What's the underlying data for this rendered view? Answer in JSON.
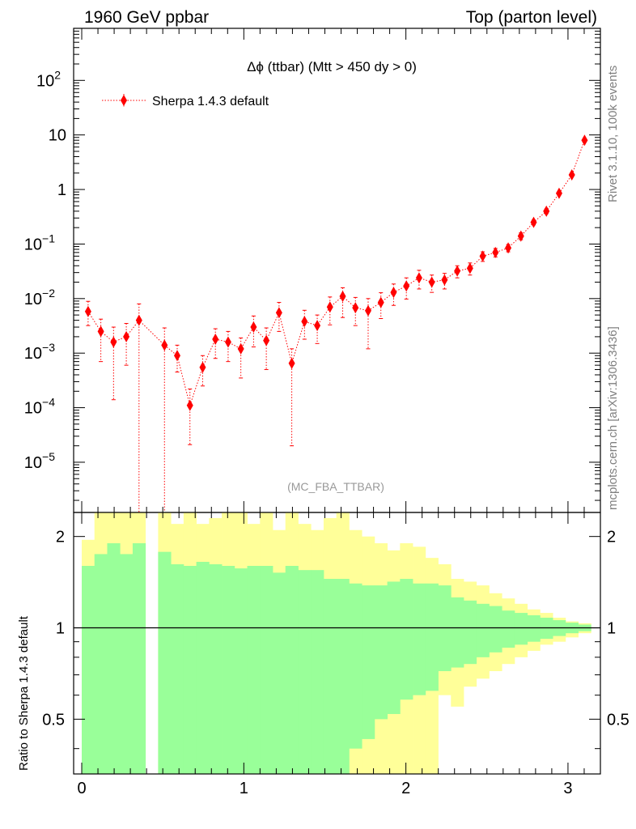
{
  "header": {
    "left": "1960 GeV ppbar",
    "right": "Top (parton level)"
  },
  "side": {
    "rivet": "Rivet 3.1.10,  100k events",
    "mcplots": "mcplots.cern.ch [arXiv:1306.3436]"
  },
  "chart_data": {
    "type": "scatter",
    "title": "Δϕ (ttbar) (Mtt > 450 dy > 0)",
    "analysis_label": "(MC_FBA_TTBAR)",
    "legend": {
      "position": "top-left",
      "entries": [
        "Sherpa 1.4.3 default"
      ]
    },
    "xlim": [
      -0.05,
      3.2
    ],
    "x_ticks": [
      0,
      1,
      2,
      3
    ],
    "x_tick_labels": [
      "0",
      "1",
      "2",
      "3"
    ],
    "main": {
      "y_scale": "log",
      "ylim": [
        1.2e-06,
        900
      ],
      "y_tick_labels": [
        {
          "value": 100,
          "base": "10",
          "exp": "2"
        },
        {
          "value": 10,
          "base": "10",
          "exp": ""
        },
        {
          "value": 1,
          "base": "1",
          "exp": ""
        },
        {
          "value": 0.1,
          "base": "10",
          "exp": "−1"
        },
        {
          "value": 0.01,
          "base": "10",
          "exp": "−2"
        },
        {
          "value": 0.001,
          "base": "10",
          "exp": "−3"
        },
        {
          "value": 0.0001,
          "base": "10",
          "exp": "−4"
        },
        {
          "value": 1e-05,
          "base": "10",
          "exp": "−5"
        }
      ],
      "series": [
        {
          "name": "Sherpa 1.4.3 default",
          "color": "#ff0000",
          "marker": "diamond",
          "line": "dotted",
          "x": [
            0.0393,
            0.1178,
            0.1963,
            0.2749,
            0.3534,
            0.432,
            0.5105,
            0.589,
            0.6676,
            0.7461,
            0.8247,
            0.9032,
            0.9817,
            1.0603,
            1.1388,
            1.2174,
            1.2959,
            1.3744,
            1.453,
            1.5315,
            1.6101,
            1.6886,
            1.7671,
            1.8457,
            1.9242,
            2.0028,
            2.0813,
            2.1598,
            2.2384,
            2.3169,
            2.3955,
            2.474,
            2.5525,
            2.6311,
            2.7096,
            2.7882,
            2.8667,
            2.9452,
            3.0238,
            3.1023
          ],
          "y": [
            0.0058,
            0.0025,
            0.0016,
            0.002,
            0.004,
            0,
            0.0014,
            0.0009,
            0.00011,
            0.00055,
            0.0018,
            0.0016,
            0.0012,
            0.003,
            0.0017,
            0.0055,
            0.00065,
            0.0038,
            0.0032,
            0.007,
            0.011,
            0.0068,
            0.006,
            0.0085,
            0.013,
            0.017,
            0.024,
            0.02,
            0.022,
            0.032,
            0.036,
            0.06,
            0.07,
            0.085,
            0.14,
            0.25,
            0.4,
            0.85,
            1.85,
            8.0
          ],
          "y_lo": [
            0.0032,
            0.0007,
            0.00014,
            0.0006,
            1e-07,
            0,
            1e-07,
            0.00045,
            2.1e-05,
            0.00025,
            0.0008,
            0.0007,
            0.00035,
            0.0013,
            0.0005,
            0.0025,
            2e-05,
            0.0018,
            0.0015,
            0.0033,
            0.0045,
            0.0032,
            0.0012,
            0.0043,
            0.0075,
            0.0098,
            0.015,
            0.013,
            0.015,
            0.024,
            0.027,
            0.048,
            0.058,
            0.072,
            0.12,
            0.225,
            0.36,
            0.8,
            1.77,
            7.8
          ],
          "y_hi": [
            0.0089,
            0.0042,
            0.003,
            0.0035,
            0.008,
            0,
            0.0029,
            0.0014,
            0.00022,
            0.0009,
            0.0028,
            0.0025,
            0.0019,
            0.0048,
            0.0029,
            0.0085,
            0.0012,
            0.0061,
            0.005,
            0.0107,
            0.0158,
            0.0105,
            0.01,
            0.0128,
            0.0185,
            0.024,
            0.033,
            0.027,
            0.029,
            0.04,
            0.045,
            0.072,
            0.083,
            0.098,
            0.16,
            0.275,
            0.44,
            0.9,
            1.93,
            8.2
          ]
        }
      ]
    },
    "ratio": {
      "ylabel": "Ratio to Sherpa 1.4.3 default",
      "y_scale": "log",
      "ylim": [
        0.33,
        2.4
      ],
      "y_ticks": [
        0.5,
        1,
        2
      ],
      "y_tick_labels": [
        "0.5",
        "1",
        "2"
      ],
      "reference_line": 1,
      "bin_edges": [
        0,
        0.0785,
        0.1571,
        0.2356,
        0.3142,
        0.3927,
        0.4712,
        0.5498,
        0.6283,
        0.7069,
        0.7854,
        0.8639,
        0.9425,
        1.021,
        1.0996,
        1.1781,
        1.2566,
        1.3352,
        1.4137,
        1.4923,
        1.5708,
        1.6493,
        1.7279,
        1.8064,
        1.885,
        1.9635,
        2.042,
        2.1206,
        2.1991,
        2.2777,
        2.3562,
        2.4347,
        2.5133,
        2.5918,
        2.6704,
        2.7489,
        2.8274,
        2.906,
        2.9845,
        3.0631,
        3.1416
      ],
      "bands": [
        {
          "name": "stat",
          "color": "#99ff99",
          "lo": [
            0.1,
            0.1,
            0.1,
            0.1,
            0.1,
            null,
            0.1,
            0.1,
            0.1,
            0.1,
            0.1,
            0.1,
            0.1,
            0.1,
            0.1,
            0.1,
            0.1,
            0.1,
            0.1,
            0.1,
            0.1,
            0.4,
            0.43,
            0.5,
            0.52,
            0.58,
            0.6,
            0.62,
            0.72,
            0.74,
            0.76,
            0.8,
            0.83,
            0.86,
            0.88,
            0.9,
            0.92,
            0.94,
            0.96,
            0.975
          ],
          "hi": [
            1.6,
            1.75,
            1.9,
            1.75,
            1.9,
            null,
            1.78,
            1.62,
            1.6,
            1.65,
            1.62,
            1.6,
            1.57,
            1.6,
            1.6,
            1.52,
            1.6,
            1.55,
            1.55,
            1.45,
            1.45,
            1.4,
            1.38,
            1.38,
            1.42,
            1.45,
            1.4,
            1.4,
            1.38,
            1.26,
            1.23,
            1.2,
            1.18,
            1.14,
            1.12,
            1.1,
            1.08,
            1.06,
            1.04,
            1.025
          ]
        },
        {
          "name": "total",
          "color": "#ffff99",
          "lo": [
            0.1,
            0.1,
            0.1,
            0.1,
            0.1,
            null,
            0.1,
            0.1,
            0.1,
            0.1,
            0.1,
            0.1,
            0.1,
            0.1,
            0.1,
            0.1,
            0.1,
            0.1,
            0.1,
            0.1,
            0.1,
            0.1,
            0.1,
            0.1,
            0.1,
            0.1,
            0.1,
            0.1,
            0.6,
            0.55,
            0.64,
            0.68,
            0.72,
            0.76,
            0.8,
            0.84,
            0.88,
            0.9,
            0.93,
            0.96
          ],
          "hi": [
            1.95,
            2.4,
            2.4,
            2.4,
            2.4,
            null,
            2.4,
            2.2,
            2.4,
            2.2,
            2.3,
            2.4,
            2.4,
            2.2,
            2.4,
            2.1,
            2.4,
            2.2,
            2.1,
            2.3,
            2.4,
            2.1,
            2.0,
            1.9,
            1.8,
            1.9,
            1.85,
            1.7,
            1.62,
            1.45,
            1.42,
            1.38,
            1.3,
            1.25,
            1.2,
            1.15,
            1.12,
            1.08,
            1.05,
            1.035
          ]
        }
      ]
    }
  }
}
